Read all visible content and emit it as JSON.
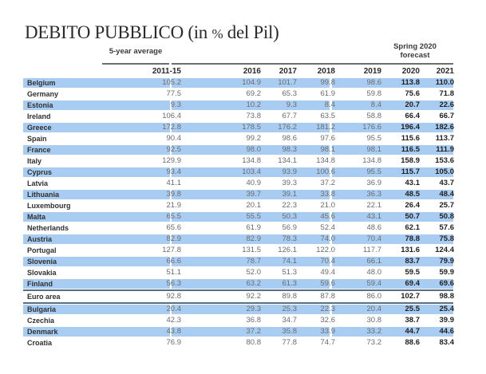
{
  "title": {
    "main": "DEBITO PUBBLICO (in ",
    "pct": "%",
    "end": " del Pil)"
  },
  "groups": {
    "avg": "5-year average",
    "forecast_line1": "Spring 2020",
    "forecast_line2": "forecast"
  },
  "columns": [
    "2011-15",
    "2016",
    "2017",
    "2018",
    "2019",
    "2020",
    "2021"
  ],
  "rows": [
    {
      "name": "Belgium",
      "values": [
        "105.2",
        "104.9",
        "101.7",
        "99.8",
        "98.6",
        "113.8",
        "110.0"
      ],
      "hl": true
    },
    {
      "name": "Germany",
      "values": [
        "77.5",
        "69.2",
        "65.3",
        "61.9",
        "59.8",
        "75.6",
        "71.8"
      ],
      "hl": false
    },
    {
      "name": "Estonia",
      "values": [
        "9.3",
        "10.2",
        "9.3",
        "8.4",
        "8.4",
        "20.7",
        "22.6"
      ],
      "hl": true
    },
    {
      "name": "Ireland",
      "values": [
        "106.4",
        "73.8",
        "67.7",
        "63.5",
        "58.8",
        "66.4",
        "66.7"
      ],
      "hl": false
    },
    {
      "name": "Greece",
      "values": [
        "172.8",
        "178.5",
        "176.2",
        "181.2",
        "176.6",
        "196.4",
        "182.6"
      ],
      "hl": true
    },
    {
      "name": "Spain",
      "values": [
        "90.4",
        "99.2",
        "98.6",
        "97.6",
        "95.5",
        "115.6",
        "113.7"
      ],
      "hl": false
    },
    {
      "name": "France",
      "values": [
        "92.5",
        "98.0",
        "98.3",
        "98.1",
        "98.1",
        "116.5",
        "111.9"
      ],
      "hl": true
    },
    {
      "name": "Italy",
      "values": [
        "129.9",
        "134.8",
        "134.1",
        "134.8",
        "134.8",
        "158.9",
        "153.6"
      ],
      "hl": false
    },
    {
      "name": "Cyprus",
      "values": [
        "93.4",
        "103.4",
        "93.9",
        "100.6",
        "95.5",
        "115.7",
        "105.0"
      ],
      "hl": true
    },
    {
      "name": "Latvia",
      "values": [
        "41.1",
        "40.9",
        "39.3",
        "37.2",
        "36.9",
        "43.1",
        "43.7"
      ],
      "hl": false
    },
    {
      "name": "Lithuania",
      "values": [
        "39.8",
        "39.7",
        "39.1",
        "33.8",
        "36.3",
        "48.5",
        "48.4"
      ],
      "hl": true
    },
    {
      "name": "Luxembourg",
      "values": [
        "21.9",
        "20.1",
        "22.3",
        "21.0",
        "22.1",
        "26.4",
        "25.7"
      ],
      "hl": false
    },
    {
      "name": "Malta",
      "values": [
        "65.5",
        "55.5",
        "50.3",
        "45.6",
        "43.1",
        "50.7",
        "50.8"
      ],
      "hl": true
    },
    {
      "name": "Netherlands",
      "values": [
        "65.6",
        "61.9",
        "56.9",
        "52.4",
        "48.6",
        "62.1",
        "57.6"
      ],
      "hl": false
    },
    {
      "name": "Austria",
      "values": [
        "82.9",
        "82.9",
        "78.3",
        "74.0",
        "70.4",
        "78.8",
        "75.8"
      ],
      "hl": true
    },
    {
      "name": "Portugal",
      "values": [
        "127.8",
        "131.5",
        "126.1",
        "122.0",
        "117.7",
        "131.6",
        "124.4"
      ],
      "hl": false
    },
    {
      "name": "Slovenia",
      "values": [
        "66.6",
        "78.7",
        "74.1",
        "70.4",
        "66.1",
        "83.7",
        "79.9"
      ],
      "hl": true
    },
    {
      "name": "Slovakia",
      "values": [
        "51.1",
        "52.0",
        "51.3",
        "49.4",
        "48.0",
        "59.5",
        "59.9"
      ],
      "hl": false
    },
    {
      "name": "Finland",
      "values": [
        "56.3",
        "63.2",
        "61.3",
        "59.6",
        "59.4",
        "69.4",
        "69.6"
      ],
      "hl": true
    },
    {
      "name": "Euro area",
      "values": [
        "92.8",
        "92.2",
        "89.8",
        "87.8",
        "86.0",
        "102.7",
        "98.8"
      ],
      "hl": false
    },
    {
      "name": "Bulgaria",
      "values": [
        "20.4",
        "29.3",
        "25.3",
        "22.3",
        "20.4",
        "25.5",
        "25.4"
      ],
      "hl": true
    },
    {
      "name": "Czechia",
      "values": [
        "42.3",
        "36.8",
        "34.7",
        "32.6",
        "30.8",
        "38.7",
        "39.9"
      ],
      "hl": false
    },
    {
      "name": "Denmark",
      "values": [
        "43.8",
        "37.2",
        "35.8",
        "33.9",
        "33.2",
        "44.7",
        "44.6"
      ],
      "hl": true
    },
    {
      "name": "Croatia",
      "values": [
        "76.9",
        "80.8",
        "77.8",
        "74.7",
        "73.2",
        "88.6",
        "83.4"
      ],
      "hl": false
    }
  ],
  "colors": {
    "highlight": "#a9cdf2",
    "rule": "#6e6e6e"
  }
}
